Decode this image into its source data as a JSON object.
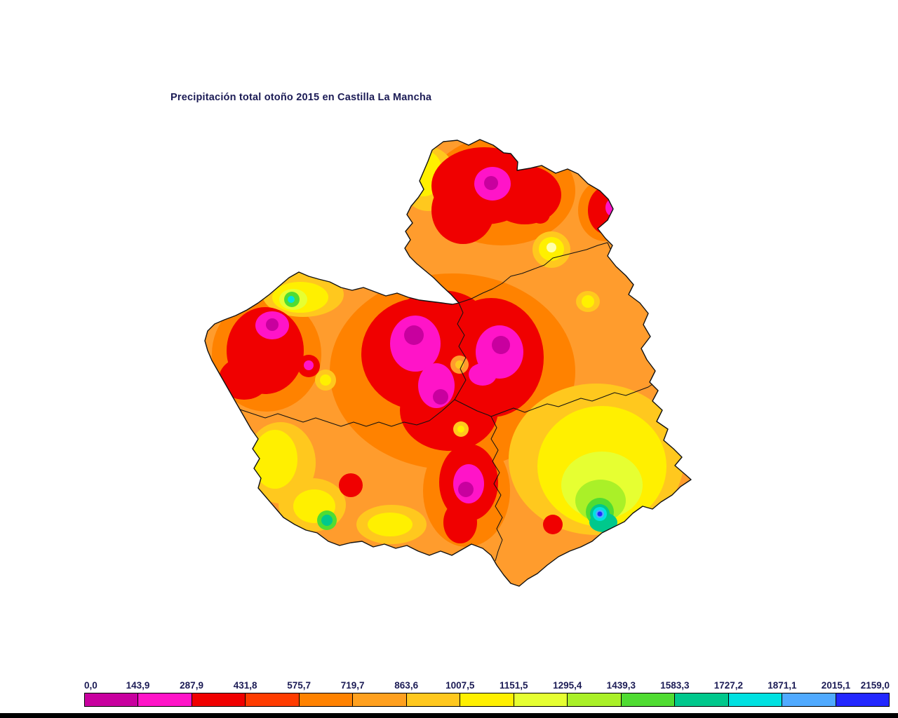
{
  "title": "Precipitación total otoño 2015 en Castilla La Mancha",
  "map": {
    "region": "Castilla La Mancha",
    "kind": "filled-contour precipitation map with province borders"
  },
  "legend": {
    "ticks": [
      "0,0",
      "143,9",
      "287,9",
      "431,8",
      "575,7",
      "719,7",
      "863,6",
      "1007,5",
      "1151,5",
      "1295,4",
      "1439,3",
      "1583,3",
      "1727,2",
      "1871,1",
      "2015,1",
      "2159,0"
    ],
    "colors": [
      "#c8009f",
      "#ff14c8",
      "#f00000",
      "#ff3c00",
      "#ff8200",
      "#ffa01e",
      "#ffc81e",
      "#fff000",
      "#e6ff32",
      "#aaf028",
      "#50dc32",
      "#00c88c",
      "#00e1e1",
      "#50aaff",
      "#2328ff"
    ]
  },
  "map_colors": {
    "base": "#ff9c2d",
    "pale_yellow": "#ffffaa",
    "border": "#111111"
  }
}
